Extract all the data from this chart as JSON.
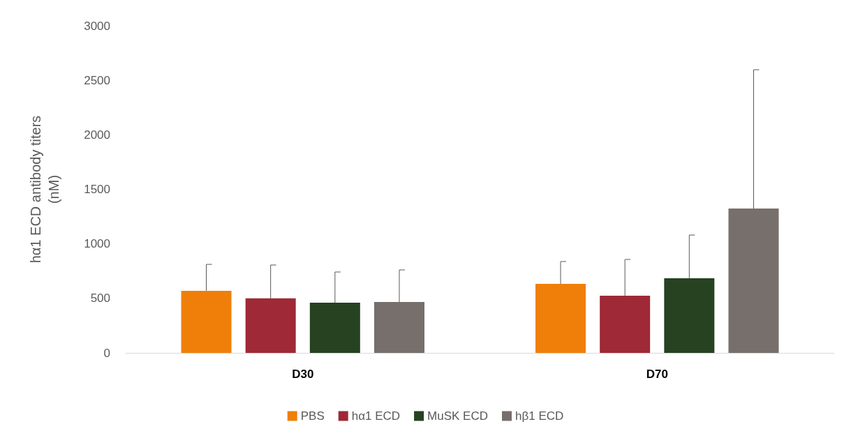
{
  "chart_data": {
    "type": "bar",
    "ylabel": "hα1 ECD antibody titers\n(nM)",
    "categories": [
      "D30",
      "D70"
    ],
    "series": [
      {
        "name": "PBS",
        "color": "#f07f09",
        "values": [
          570,
          633
        ],
        "errors": [
          [
            570,
            812
          ],
          [
            633,
            838
          ]
        ]
      },
      {
        "name": "hα1 ECD",
        "color": "#9f2936",
        "values": [
          500,
          525
        ],
        "errors": [
          [
            500,
            806
          ],
          [
            525,
            857
          ]
        ]
      },
      {
        "name": "MuSK ECD",
        "color": "#264221",
        "values": [
          460,
          685
        ],
        "errors": [
          [
            460,
            742
          ],
          [
            685,
            1081
          ]
        ]
      },
      {
        "name": "hβ1 ECD",
        "color": "#766f6c",
        "values": [
          467,
          1324
        ],
        "errors": [
          [
            467,
            761
          ],
          [
            1324,
            2597
          ]
        ]
      }
    ],
    "ylim": [
      0,
      3000
    ],
    "yticks": [
      0,
      500,
      1000,
      1500,
      2000,
      2500,
      3000
    ],
    "grid": false,
    "legend": "bottom"
  }
}
